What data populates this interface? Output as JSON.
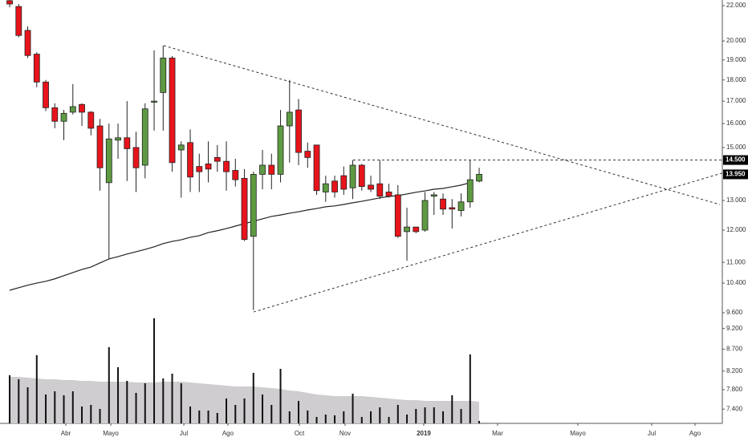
{
  "chart_data": {
    "type": "candlestick",
    "log_scale": true,
    "grid": false,
    "up_color": "#5e9a42",
    "down_color": "#e8141c",
    "x": [
      0,
      1,
      2,
      3,
      4,
      5,
      6,
      7,
      8,
      9,
      10,
      11,
      12,
      13,
      14,
      15,
      16,
      17,
      18,
      19,
      20,
      21,
      22,
      23,
      24,
      25,
      26,
      27,
      28,
      29,
      30,
      31,
      32,
      33,
      34,
      35,
      36,
      37,
      38,
      39,
      40,
      41,
      42,
      43,
      44,
      45,
      46,
      47,
      48,
      49,
      50,
      51,
      52
    ],
    "open": [
      22.3,
      21.95,
      20.58,
      19.3,
      17.9,
      16.7,
      16.1,
      16.5,
      16.85,
      16.5,
      15.9,
      13.64,
      15.3,
      15.4,
      15.0,
      14.3,
      16.95,
      17.4,
      19.1,
      14.9,
      15.2,
      14.25,
      14.35,
      14.6,
      14.45,
      14.1,
      13.8,
      11.8,
      13.95,
      14.3,
      13.95,
      15.9,
      16.6,
      14.85,
      15.1,
      13.3,
      13.7,
      13.9,
      13.45,
      14.3,
      13.55,
      13.6,
      13.3,
      13.2,
      11.95,
      12.1,
      12.0,
      13.15,
      13.05,
      12.75,
      12.65,
      12.95,
      13.7
    ],
    "high": [
      22.4,
      22.1,
      20.8,
      19.4,
      18.0,
      16.9,
      16.6,
      17.8,
      16.9,
      16.55,
      16.2,
      16.0,
      16.0,
      17.0,
      15.65,
      16.9,
      19.5,
      19.75,
      19.2,
      15.25,
      15.75,
      14.75,
      15.25,
      15.1,
      15.25,
      14.55,
      14.15,
      14.05,
      14.9,
      14.75,
      16.6,
      18.0,
      17.1,
      15.2,
      15.1,
      13.9,
      13.9,
      14.25,
      14.5,
      14.35,
      13.9,
      14.5,
      13.6,
      13.55,
      12.75,
      12.1,
      13.3,
      13.3,
      13.25,
      13.05,
      13.25,
      14.5,
      14.2
    ],
    "low": [
      21.9,
      20.2,
      19.1,
      17.65,
      16.55,
      15.8,
      15.3,
      16.4,
      15.9,
      15.5,
      13.35,
      11.1,
      14.55,
      13.7,
      13.3,
      13.8,
      15.7,
      15.7,
      14.05,
      13.1,
      13.3,
      13.3,
      13.65,
      14.05,
      13.35,
      13.5,
      11.65,
      9.67,
      13.4,
      13.4,
      13.65,
      14.4,
      14.3,
      14.2,
      13.2,
      12.95,
      13.1,
      13.2,
      13.05,
      13.35,
      13.3,
      13.05,
      13.1,
      11.75,
      11.05,
      11.9,
      11.95,
      12.5,
      12.5,
      12.05,
      12.45,
      12.75,
      13.65
    ],
    "close": [
      22.1,
      20.3,
      19.23,
      17.9,
      16.7,
      16.1,
      16.45,
      16.75,
      16.5,
      15.8,
      14.2,
      15.35,
      15.4,
      14.95,
      14.2,
      16.65,
      17.0,
      19.1,
      14.4,
      15.1,
      13.85,
      14.05,
      14.15,
      14.45,
      14.05,
      13.75,
      11.7,
      13.95,
      14.3,
      13.95,
      15.9,
      16.5,
      14.8,
      14.6,
      13.35,
      13.6,
      13.3,
      13.4,
      14.3,
      13.5,
      13.4,
      13.15,
      13.15,
      11.8,
      12.1,
      11.95,
      13.0,
      13.2,
      12.7,
      12.7,
      12.95,
      13.75,
      13.95
    ],
    "volume": [
      60,
      55,
      45,
      85,
      36,
      40,
      35,
      40,
      21,
      23,
      18,
      95,
      70,
      53,
      38,
      50,
      131,
      56,
      62,
      50,
      21,
      16,
      16,
      13,
      31,
      23,
      31,
      63,
      36,
      23,
      68,
      15,
      28,
      16,
      8,
      11,
      10,
      15,
      37,
      8,
      15,
      20,
      8,
      23,
      11,
      18,
      20,
      20,
      15,
      35,
      18,
      86,
      3
    ],
    "volume_color": "#111111",
    "volume_ma": [
      58,
      58,
      57,
      56,
      55,
      55,
      54,
      54,
      53,
      53,
      52,
      52,
      52,
      52,
      51,
      51,
      51,
      52,
      52,
      52,
      51,
      50,
      49,
      48,
      47,
      46,
      46,
      46,
      45,
      44,
      43,
      41,
      40,
      38,
      36,
      35,
      34,
      34,
      34,
      34,
      33,
      32,
      31,
      30,
      29,
      29,
      28,
      28,
      28,
      28,
      28,
      28,
      27
    ],
    "volume_ma_color": "#cfcdcf",
    "ma": [
      10.2,
      10.27,
      10.34,
      10.4,
      10.45,
      10.52,
      10.61,
      10.7,
      10.79,
      10.86,
      10.98,
      11.1,
      11.17,
      11.25,
      11.32,
      11.39,
      11.47,
      11.57,
      11.64,
      11.69,
      11.77,
      11.82,
      11.92,
      11.98,
      12.05,
      12.13,
      12.21,
      12.29,
      12.37,
      12.45,
      12.5,
      12.56,
      12.61,
      12.67,
      12.72,
      12.78,
      12.81,
      12.86,
      12.92,
      12.97,
      13.03,
      13.09,
      13.14,
      13.17,
      13.23,
      13.29,
      13.34,
      13.4,
      13.43,
      13.49,
      13.55,
      13.64,
      null
    ],
    "ma_color": "#222222",
    "trendlines": [
      {
        "x": [
          17.06,
          78.66
        ],
        "y": [
          19.75,
          12.86
        ]
      },
      {
        "x": [
          27.02,
          78.93
        ],
        "y": [
          9.62,
          14.0
        ]
      },
      {
        "x": [
          38.04,
          78.93
        ],
        "y": [
          14.5,
          14.5
        ]
      }
    ],
    "marker_labels": [
      {
        "value": 14.5,
        "label": "14.500"
      },
      {
        "value": 13.95,
        "label": "13.950"
      }
    ],
    "xlim": [
      -1.07,
      78.93
    ],
    "xticks": [
      {
        "value": 6.22,
        "label": "Abr"
      },
      {
        "value": 11.2,
        "label": "Mayo"
      },
      {
        "value": 19.29,
        "label": "Jul"
      },
      {
        "value": 24.17,
        "label": "Ago"
      },
      {
        "value": 32.09,
        "label": "Oct"
      },
      {
        "value": 37.15,
        "label": "Nov"
      },
      {
        "value": 45.86,
        "label": "2019",
        "bold": true
      },
      {
        "value": 54.04,
        "label": "Mar"
      },
      {
        "value": 62.93,
        "label": "Mayo"
      },
      {
        "value": 71.11,
        "label": "Jul"
      },
      {
        "value": 75.91,
        "label": "Ago"
      }
    ],
    "ylim": [
      7.12,
      22.34
    ],
    "yticks": [
      {
        "value": 22,
        "label": "22.000"
      },
      {
        "value": 20,
        "label": "20.000"
      },
      {
        "value": 19,
        "label": "19.000"
      },
      {
        "value": 18,
        "label": "18.000"
      },
      {
        "value": 17,
        "label": "17.000"
      },
      {
        "value": 16,
        "label": "16.000"
      },
      {
        "value": 15,
        "label": "15.000"
      },
      {
        "value": 13,
        "label": "13.000"
      },
      {
        "value": 12,
        "label": "12.000"
      },
      {
        "value": 11,
        "label": "11.000"
      },
      {
        "value": 10.4,
        "label": "10.400"
      },
      {
        "value": 9.6,
        "label": "9.600"
      },
      {
        "value": 9.2,
        "label": "9.200"
      },
      {
        "value": 8.7,
        "label": "8.700"
      },
      {
        "value": 8.2,
        "label": "8.200"
      },
      {
        "value": 7.8,
        "label": "7.800"
      },
      {
        "value": 7.4,
        "label": "7.400"
      }
    ]
  }
}
